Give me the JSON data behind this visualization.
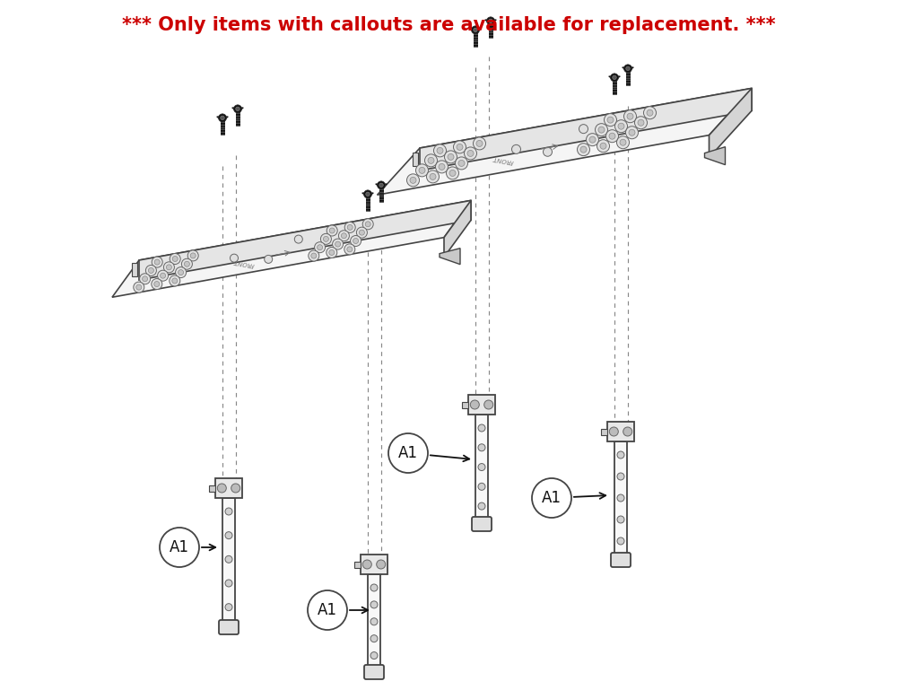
{
  "title_text": "*** Only items with callouts are available for replacement. ***",
  "title_color": "#cc0000",
  "title_fontsize": 15,
  "bg_color": "#ffffff",
  "line_color": "#444444",
  "dashed_color": "#888888",
  "callout_bg": "#ffffff",
  "callout_border": "#444444",
  "callout_text": "A1",
  "callout_fontsize": 12
}
